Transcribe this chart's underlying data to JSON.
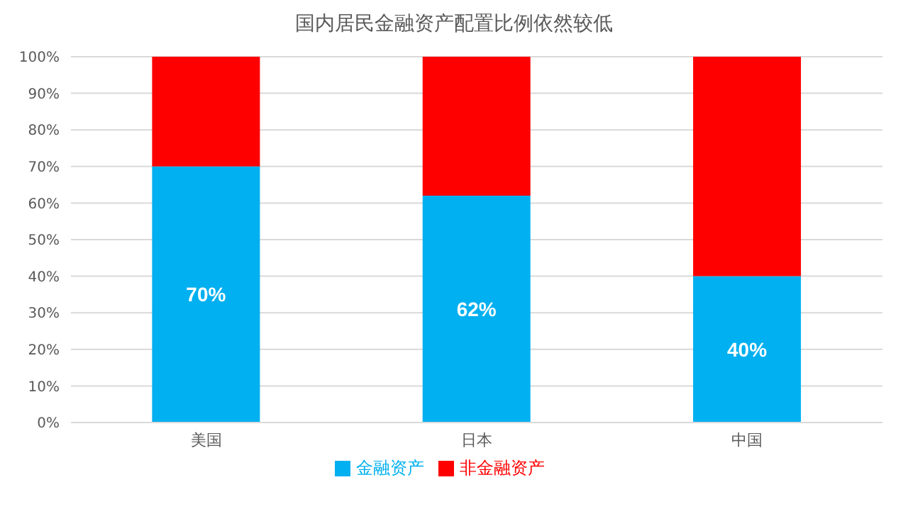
{
  "chart_data": {
    "type": "bar",
    "title": "国内居民金融资产配置比例依然较低",
    "categories": [
      "美国",
      "日本",
      "中国"
    ],
    "stacked": true,
    "series": [
      {
        "name": "金融资产",
        "color": "#00b0f0",
        "values": [
          70,
          62,
          40
        ],
        "value_labels": [
          "70%",
          "62%",
          "40%"
        ]
      },
      {
        "name": "非金融资产",
        "color": "#ff0000",
        "values": [
          30,
          38,
          60
        ]
      }
    ],
    "ylim": [
      0,
      100
    ],
    "yticks": [
      {
        "value": 0,
        "label": "0%"
      },
      {
        "value": 10,
        "label": "10%"
      },
      {
        "value": 20,
        "label": "20%"
      },
      {
        "value": 30,
        "label": "30%"
      },
      {
        "value": 40,
        "label": "40%"
      },
      {
        "value": 50,
        "label": "50%"
      },
      {
        "value": 60,
        "label": "60%"
      },
      {
        "value": 70,
        "label": "70%"
      },
      {
        "value": 80,
        "label": "80%"
      },
      {
        "value": 90,
        "label": "90%"
      },
      {
        "value": 100,
        "label": "100%"
      }
    ],
    "grid": "y",
    "legend": "bottom"
  }
}
